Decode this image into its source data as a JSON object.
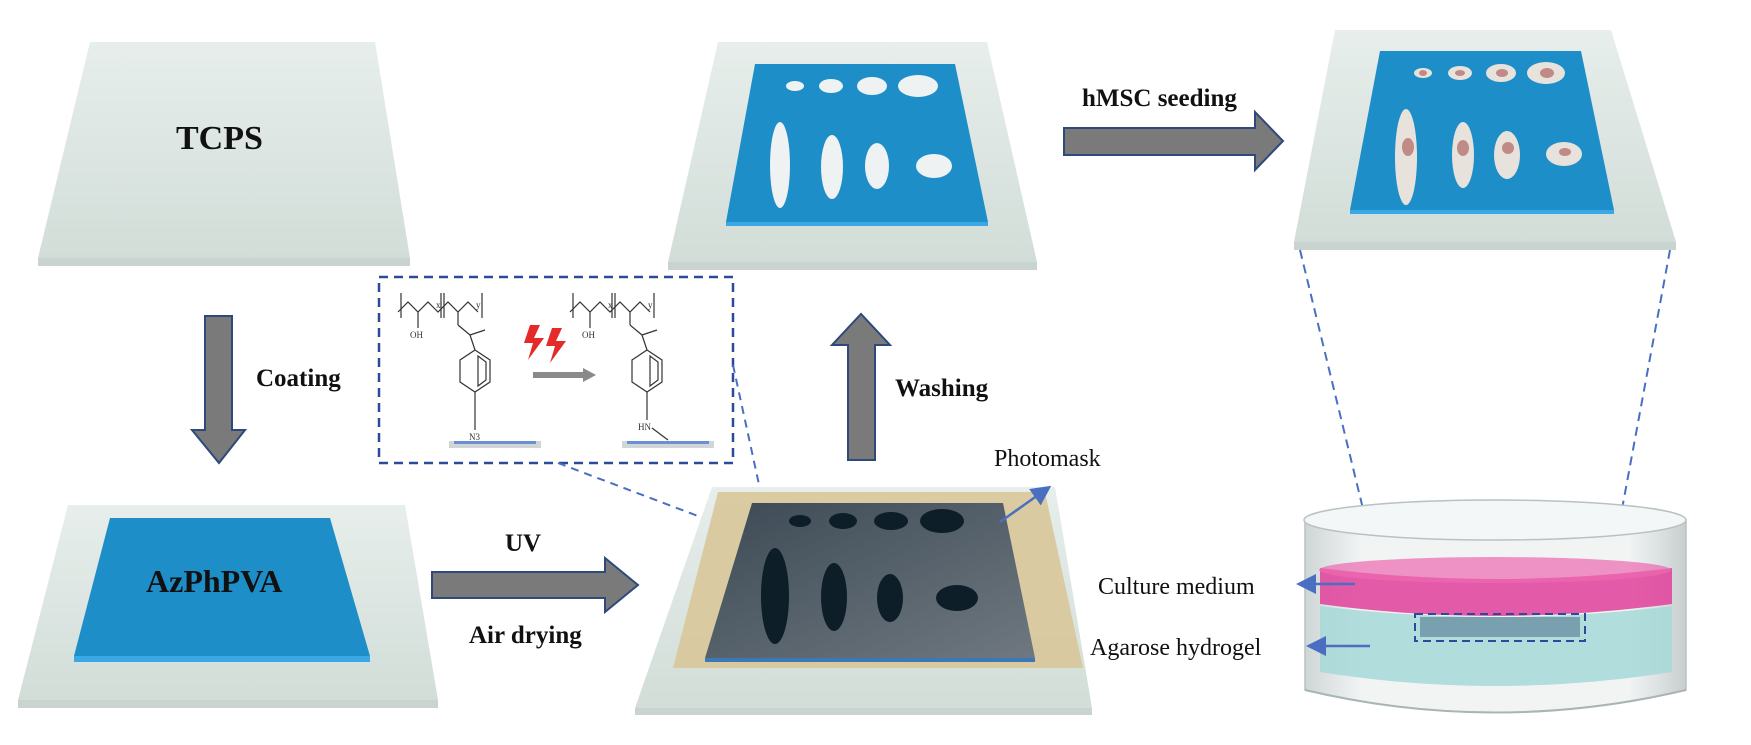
{
  "labels": {
    "tcps": "TCPS",
    "coating": "Coating",
    "azphpva": "AzPhPVA",
    "uv": "UV",
    "air_drying": "Air drying",
    "washing": "Washing",
    "photomask": "Photomask",
    "hmsc_seeding": "hMSC seeding",
    "culture_medium": "Culture medium",
    "agarose_hydrogel": "Agarose hydrogel"
  },
  "chemistry": {
    "left": {
      "x": "x",
      "y": "y",
      "oh": "OH",
      "n3": "N3"
    },
    "right": {
      "x": "x",
      "y": "y",
      "oh": "OH",
      "hn": "HN"
    }
  },
  "colors": {
    "substrate": "#dfe8e4",
    "film": "#1e8ec8",
    "arrow": "#7a7a7a",
    "arrow_edge": "#2d4a7a",
    "dashed": "#4a6fc2",
    "mask_gold": "#d8c79a",
    "culture_medium": "#e0409a",
    "agarose": "#a6d8d8",
    "lightning": "#e52a2a",
    "cell_nucleus": "#c08a86"
  },
  "icons": {
    "process_arrow": "thick-arrow-icon",
    "reaction": "lightning-icon",
    "callout": "leader-arrow-icon"
  }
}
